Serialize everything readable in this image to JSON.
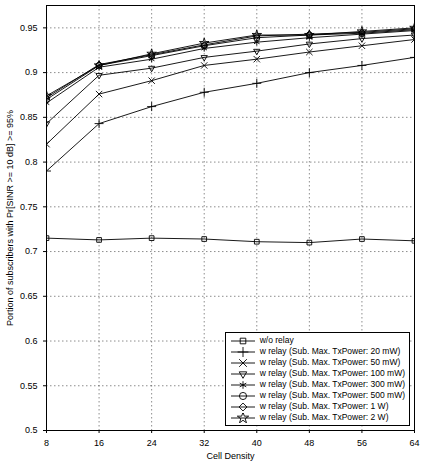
{
  "chart_data": {
    "type": "line",
    "x_label": "Cell Density",
    "y_label": "Portion of subscribers with Pr[SINR >= 10 dB] >= 95%",
    "x": [
      8,
      16,
      24,
      32,
      40,
      48,
      56,
      64
    ],
    "xlim": [
      8,
      64
    ],
    "xticks": [
      8,
      16,
      24,
      32,
      40,
      48,
      56,
      64
    ],
    "ylim": [
      0.5,
      0.975
    ],
    "yticks": [
      0.5,
      0.55,
      0.6,
      0.65,
      0.7,
      0.75,
      0.8,
      0.85,
      0.9,
      0.95
    ],
    "grid": true,
    "legend": "bottom-right",
    "series": [
      {
        "name": "w/o relay",
        "color": "#000000",
        "marker": "square",
        "values": [
          0.715,
          0.713,
          0.715,
          0.714,
          0.711,
          0.71,
          0.714,
          0.712
        ]
      },
      {
        "name": "w relay (Sub. Max. TxPower: 20 mW)",
        "color": "#000000",
        "marker": "plus",
        "values": [
          0.79,
          0.843,
          0.862,
          0.878,
          0.888,
          0.9,
          0.908,
          0.917
        ]
      },
      {
        "name": "w relay (Sub. Max. TxPower: 50 mW)",
        "color": "#000000",
        "marker": "x",
        "values": [
          0.82,
          0.876,
          0.891,
          0.908,
          0.915,
          0.923,
          0.93,
          0.937
        ]
      },
      {
        "name": "w relay (Sub. Max. TxPower: 100 mW)",
        "color": "#000000",
        "marker": "triangle-down",
        "values": [
          0.843,
          0.897,
          0.905,
          0.917,
          0.924,
          0.932,
          0.938,
          0.942
        ]
      },
      {
        "name": "w relay (Sub. Max. TxPower: 300 mW)",
        "color": "#000000",
        "marker": "asterisk",
        "values": [
          0.866,
          0.906,
          0.915,
          0.927,
          0.934,
          0.939,
          0.943,
          0.947
        ]
      },
      {
        "name": "w relay (Sub. Max. TxPower: 500 mW)",
        "color": "#000000",
        "marker": "circle",
        "values": [
          0.87,
          0.908,
          0.919,
          0.93,
          0.939,
          0.942,
          0.944,
          0.948
        ]
      },
      {
        "name": "w relay (Sub. Max. TxPower: 1 W)",
        "color": "#000000",
        "marker": "diamond",
        "values": [
          0.872,
          0.909,
          0.92,
          0.931,
          0.941,
          0.943,
          0.945,
          0.949
        ]
      },
      {
        "name": "w relay (Sub. Max. TxPower: 2 W)",
        "color": "#000000",
        "marker": "hexagram",
        "values": [
          0.874,
          0.908,
          0.921,
          0.933,
          0.942,
          0.942,
          0.946,
          0.95
        ]
      }
    ]
  }
}
